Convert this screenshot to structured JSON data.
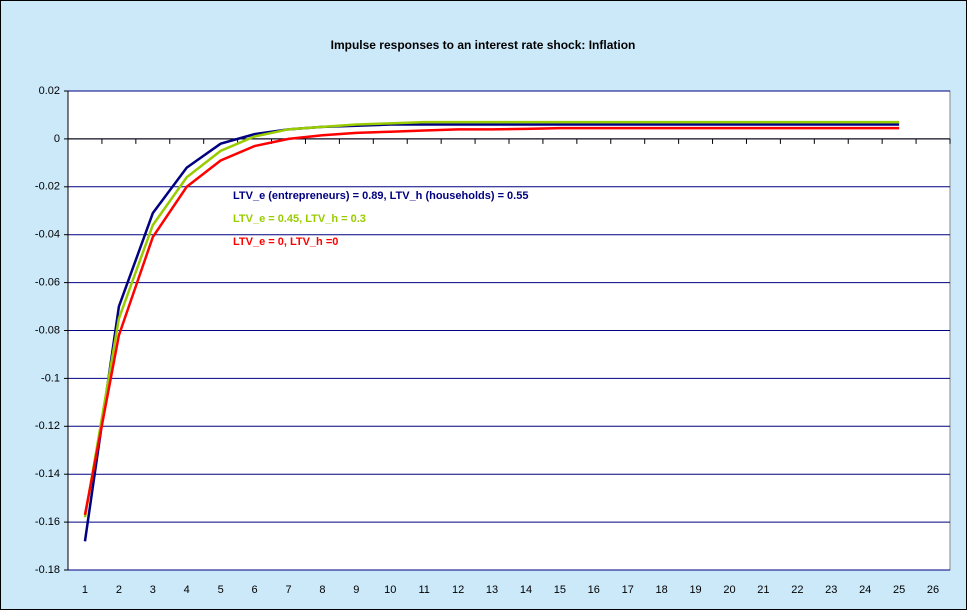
{
  "chart_data": {
    "type": "line",
    "title": "Impulse responses to an interest rate shock: Inflation",
    "categories": [
      1,
      2,
      3,
      4,
      5,
      6,
      7,
      8,
      9,
      10,
      11,
      12,
      13,
      14,
      15,
      16,
      17,
      18,
      19,
      20,
      21,
      22,
      23,
      24,
      25,
      26
    ],
    "series": [
      {
        "name": "LTV_e (entrepreneurs) = 0.89, LTV_h (households) = 0.55",
        "color": "#000080",
        "values": [
          -0.168,
          -0.07,
          -0.031,
          -0.012,
          -0.002,
          0.002,
          0.004,
          0.005,
          0.0055,
          0.006,
          0.006,
          0.006,
          0.006,
          0.006,
          0.006,
          0.006,
          0.006,
          0.006,
          0.006,
          0.006,
          0.006,
          0.006,
          0.006,
          0.006,
          0.006,
          null
        ]
      },
      {
        "name": "LTV_e = 0.45, LTV_h = 0.3",
        "color": "#99cc00",
        "values": [
          -0.158,
          -0.075,
          -0.036,
          -0.016,
          -0.005,
          0.001,
          0.004,
          0.005,
          0.006,
          0.0065,
          0.007,
          0.007,
          0.007,
          0.007,
          0.007,
          0.007,
          0.007,
          0.007,
          0.007,
          0.007,
          0.007,
          0.007,
          0.007,
          0.007,
          0.007,
          null
        ]
      },
      {
        "name": "LTV_e = 0, LTV_h =0",
        "color": "#ff0000",
        "values": [
          -0.157,
          -0.082,
          -0.041,
          -0.02,
          -0.009,
          -0.003,
          0,
          0.0015,
          0.0025,
          0.003,
          0.0035,
          0.004,
          0.004,
          0.0042,
          0.0045,
          0.0045,
          0.0045,
          0.0045,
          0.0045,
          0.0045,
          0.0045,
          0.0045,
          0.0045,
          0.0045,
          0.0045,
          null
        ]
      }
    ],
    "ylim": [
      -0.18,
      0.02
    ],
    "yticks": [
      0.02,
      0,
      -0.02,
      -0.04,
      -0.06,
      -0.08,
      -0.1,
      -0.12,
      -0.14,
      -0.16,
      -0.18
    ],
    "grid": true
  }
}
